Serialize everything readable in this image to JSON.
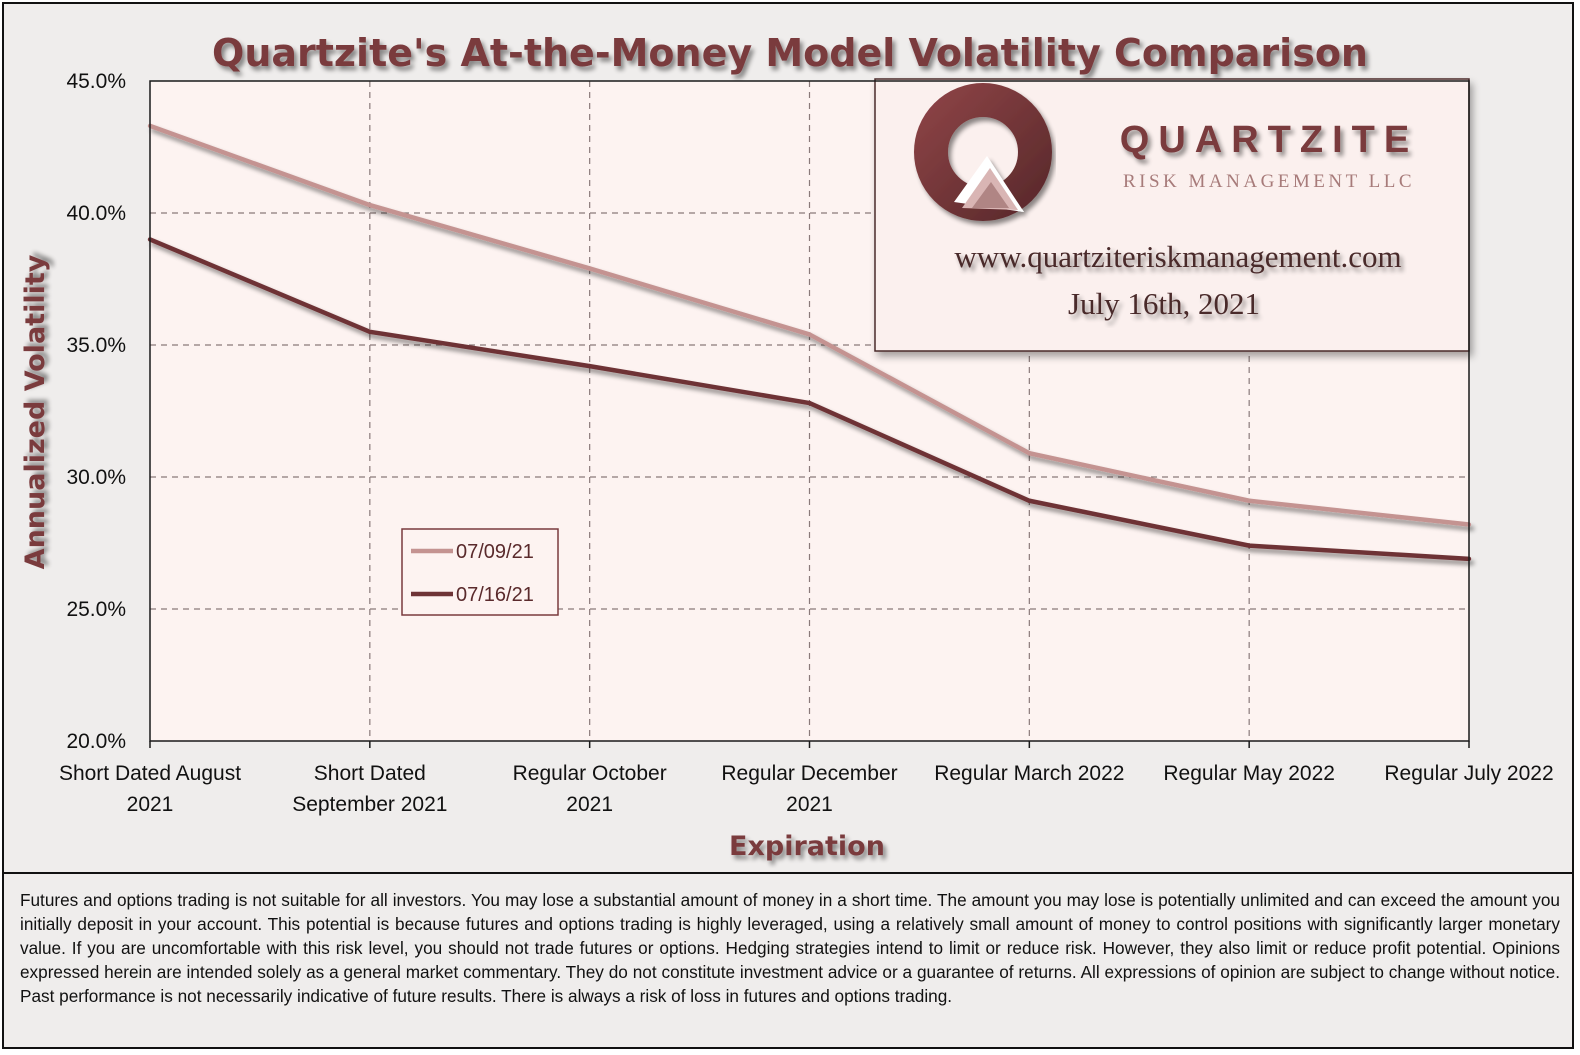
{
  "brand": {
    "name": "QUARTZITE",
    "subtitle": "RISK MANAGEMENT LLC",
    "url": "www.quartziteriskmanagement.com",
    "date": "July 16th, 2021"
  },
  "colors": {
    "title": "#7a3b3e",
    "series_light": "#c49391",
    "series_dark": "#6e3336",
    "plot_bg": "#fdf3f1"
  },
  "disclaimer": "Futures and options trading is not suitable for all investors. You may lose a substantial amount of money in a short time. The amount you may lose is potentially unlimited and can exceed the amount you initially deposit in your account. This potential is because futures and options trading is highly leveraged, using a relatively small amount of money to control positions with significantly larger monetary value. If you are uncomfortable with this risk level, you should not trade futures or options. Hedging strategies intend to limit or reduce risk. However, they also limit or reduce profit potential. Opinions expressed herein are intended solely as a general market commentary. They do not constitute investment advice or a guarantee of returns. All expressions of opinion are subject to change without notice. Past performance is not necessarily indicative of future results. There is always a risk of loss in futures and options trading.",
  "chart_data": {
    "type": "line",
    "title": "Quartzite's At-the-Money Model Volatility Comparison",
    "xlabel": "Expiration",
    "ylabel": "Annualized Volatility",
    "categories": [
      [
        "Short Dated August",
        "2021"
      ],
      [
        "Short Dated",
        "September 2021"
      ],
      [
        "Regular October",
        "2021"
      ],
      [
        "Regular December",
        "2021"
      ],
      [
        "Regular March 2022"
      ],
      [
        "Regular May 2022"
      ],
      [
        "Regular July 2022"
      ]
    ],
    "yticks": [
      "20.0%",
      "25.0%",
      "30.0%",
      "35.0%",
      "40.0%",
      "45.0%"
    ],
    "ylim": [
      20,
      45
    ],
    "grid": true,
    "legend_position": "lower-left",
    "series": [
      {
        "name": "07/09/21",
        "color": "#c49391",
        "values": [
          43.3,
          40.3,
          37.9,
          35.4,
          30.9,
          29.1,
          28.2
        ]
      },
      {
        "name": "07/16/21",
        "color": "#6e3336",
        "values": [
          39.0,
          35.5,
          34.2,
          32.8,
          29.1,
          27.4,
          26.9
        ]
      }
    ]
  }
}
